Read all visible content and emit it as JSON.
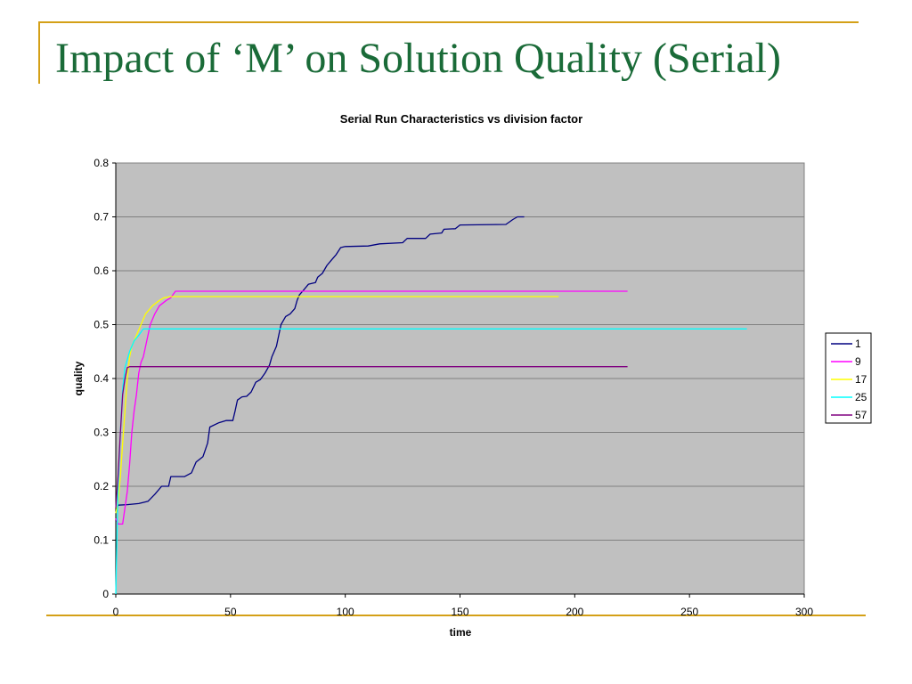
{
  "slide": {
    "title": "Impact of ‘M’ on Solution Quality (Serial)"
  },
  "colors": {
    "title": "#1a6b38",
    "accent_rule": "#d4a017",
    "plot_background": "#c0c0c0",
    "gridline": "#808080"
  },
  "chart_data": {
    "type": "line",
    "title": "Serial Run Characteristics vs division factor",
    "xlabel": "time",
    "ylabel": "quality",
    "xlim": [
      0,
      300
    ],
    "ylim": [
      0,
      0.8
    ],
    "x_ticks": [
      "0",
      "50",
      "100",
      "150",
      "200",
      "250",
      "300"
    ],
    "y_ticks": [
      "0",
      "0.1",
      "0.2",
      "0.3",
      "0.4",
      "0.5",
      "0.6",
      "0.7",
      "0.8"
    ],
    "grid": true,
    "legend_position": "right",
    "series": [
      {
        "name": "1",
        "color": "#000080",
        "points": [
          [
            0,
            0.15
          ],
          [
            1,
            0.165
          ],
          [
            5,
            0.166
          ],
          [
            10,
            0.168
          ],
          [
            14,
            0.172
          ],
          [
            17,
            0.185
          ],
          [
            20,
            0.2
          ],
          [
            23,
            0.2
          ],
          [
            24,
            0.218
          ],
          [
            30,
            0.218
          ],
          [
            33,
            0.225
          ],
          [
            35,
            0.245
          ],
          [
            38,
            0.255
          ],
          [
            40,
            0.28
          ],
          [
            41,
            0.31
          ],
          [
            45,
            0.318
          ],
          [
            48,
            0.322
          ],
          [
            51,
            0.322
          ],
          [
            52,
            0.34
          ],
          [
            53,
            0.36
          ],
          [
            55,
            0.366
          ],
          [
            57,
            0.367
          ],
          [
            59,
            0.375
          ],
          [
            61,
            0.393
          ],
          [
            63,
            0.398
          ],
          [
            65,
            0.41
          ],
          [
            67,
            0.425
          ],
          [
            68,
            0.44
          ],
          [
            70,
            0.46
          ],
          [
            72,
            0.5
          ],
          [
            74,
            0.515
          ],
          [
            76,
            0.52
          ],
          [
            78,
            0.53
          ],
          [
            79,
            0.545
          ],
          [
            80,
            0.555
          ],
          [
            82,
            0.565
          ],
          [
            84,
            0.575
          ],
          [
            87,
            0.578
          ],
          [
            88,
            0.588
          ],
          [
            90,
            0.595
          ],
          [
            92,
            0.61
          ],
          [
            94,
            0.62
          ],
          [
            96,
            0.63
          ],
          [
            98,
            0.643
          ],
          [
            100,
            0.645
          ],
          [
            110,
            0.646
          ],
          [
            115,
            0.65
          ],
          [
            125,
            0.652
          ],
          [
            127,
            0.66
          ],
          [
            135,
            0.66
          ],
          [
            137,
            0.668
          ],
          [
            142,
            0.67
          ],
          [
            143,
            0.677
          ],
          [
            148,
            0.678
          ],
          [
            150,
            0.685
          ],
          [
            170,
            0.686
          ],
          [
            173,
            0.695
          ],
          [
            175,
            0.7
          ],
          [
            178,
            0.7
          ]
        ]
      },
      {
        "name": "9",
        "color": "#ff00ff",
        "points": [
          [
            0,
            0.14
          ],
          [
            1,
            0.13
          ],
          [
            3,
            0.13
          ],
          [
            4,
            0.16
          ],
          [
            5,
            0.19
          ],
          [
            6,
            0.24
          ],
          [
            7,
            0.3
          ],
          [
            8,
            0.34
          ],
          [
            9,
            0.37
          ],
          [
            10,
            0.41
          ],
          [
            11,
            0.43
          ],
          [
            12,
            0.44
          ],
          [
            13,
            0.46
          ],
          [
            15,
            0.5
          ],
          [
            17,
            0.52
          ],
          [
            19,
            0.535
          ],
          [
            22,
            0.545
          ],
          [
            24,
            0.55
          ],
          [
            25,
            0.556
          ],
          [
            26,
            0.562
          ],
          [
            50,
            0.562
          ],
          [
            100,
            0.562
          ],
          [
            150,
            0.562
          ],
          [
            223,
            0.562
          ]
        ]
      },
      {
        "name": "17",
        "color": "#ffff00",
        "points": [
          [
            0,
            0.15
          ],
          [
            1,
            0.17
          ],
          [
            2,
            0.22
          ],
          [
            3,
            0.28
          ],
          [
            4,
            0.34
          ],
          [
            5,
            0.4
          ],
          [
            6,
            0.44
          ],
          [
            7,
            0.46
          ],
          [
            9,
            0.48
          ],
          [
            11,
            0.5
          ],
          [
            13,
            0.52
          ],
          [
            16,
            0.535
          ],
          [
            19,
            0.545
          ],
          [
            21,
            0.55
          ],
          [
            24,
            0.552
          ],
          [
            50,
            0.552
          ],
          [
            100,
            0.552
          ],
          [
            150,
            0.552
          ],
          [
            193,
            0.552
          ]
        ]
      },
      {
        "name": "25",
        "color": "#00ffff",
        "points": [
          [
            0,
            0.0
          ],
          [
            0.5,
            0.1
          ],
          [
            1,
            0.2
          ],
          [
            2,
            0.3
          ],
          [
            3,
            0.38
          ],
          [
            4,
            0.42
          ],
          [
            6,
            0.45
          ],
          [
            8,
            0.47
          ],
          [
            10,
            0.48
          ],
          [
            12,
            0.492
          ],
          [
            50,
            0.492
          ],
          [
            100,
            0.492
          ],
          [
            200,
            0.492
          ],
          [
            275,
            0.492
          ]
        ]
      },
      {
        "name": "57",
        "color": "#800080",
        "points": [
          [
            0,
            0.16
          ],
          [
            1,
            0.22
          ],
          [
            2,
            0.3
          ],
          [
            3,
            0.37
          ],
          [
            4,
            0.4
          ],
          [
            5,
            0.42
          ],
          [
            6,
            0.422
          ],
          [
            50,
            0.422
          ],
          [
            100,
            0.422
          ],
          [
            150,
            0.422
          ],
          [
            223,
            0.422
          ]
        ]
      }
    ]
  }
}
